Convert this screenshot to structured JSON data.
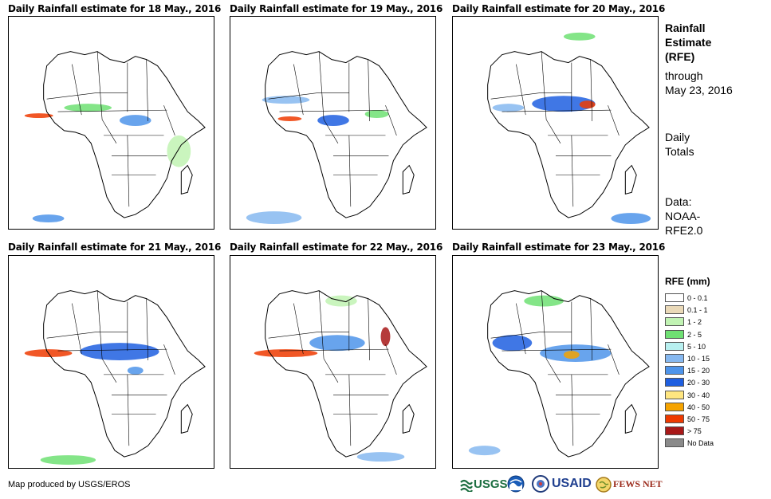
{
  "panels": [
    {
      "title": "Daily Rainfall estimate for 18 May., 2016"
    },
    {
      "title": "Daily Rainfall estimate for 19 May., 2016"
    },
    {
      "title": "Daily Rainfall estimate for 20 May., 2016"
    },
    {
      "title": "Daily Rainfall estimate for 21 May., 2016"
    },
    {
      "title": "Daily Rainfall estimate for 22 May., 2016"
    },
    {
      "title": "Daily Rainfall estimate for 23 May., 2016"
    }
  ],
  "sidebar": {
    "heading": [
      "Rainfall",
      "Estimate",
      "(RFE)"
    ],
    "through": [
      "through",
      "May 23, 2016"
    ],
    "daily": [
      "Daily",
      "Totals"
    ],
    "data": [
      "Data:",
      "NOAA-",
      "RFE2.0"
    ]
  },
  "legend": {
    "title": "RFE (mm)",
    "items": [
      {
        "label": "0 - 0.1",
        "color": "#ffffff"
      },
      {
        "label": "0.1 - 1",
        "color": "#ead9b8"
      },
      {
        "label": "1 - 2",
        "color": "#c1f3b3"
      },
      {
        "label": "2 - 5",
        "color": "#6fe073"
      },
      {
        "label": "5 - 10",
        "color": "#b8f0f0"
      },
      {
        "label": "10 - 15",
        "color": "#86b8f0"
      },
      {
        "label": "15 - 20",
        "color": "#4e94ea"
      },
      {
        "label": "20 - 30",
        "color": "#1f5fe0"
      },
      {
        "label": "30 - 40",
        "color": "#ffe680"
      },
      {
        "label": "40 - 50",
        "color": "#f5a300"
      },
      {
        "label": "50 - 75",
        "color": "#ee3a00"
      },
      {
        "label": "> 75",
        "color": "#a81818"
      },
      {
        "label": "No Data",
        "color": "#8a8a8a"
      }
    ]
  },
  "footer": {
    "credit": "Map produced by USGS/EROS",
    "logos": {
      "usgs": "USGS",
      "usaid": "USAID",
      "fewsnet": "FEWS NET"
    }
  }
}
